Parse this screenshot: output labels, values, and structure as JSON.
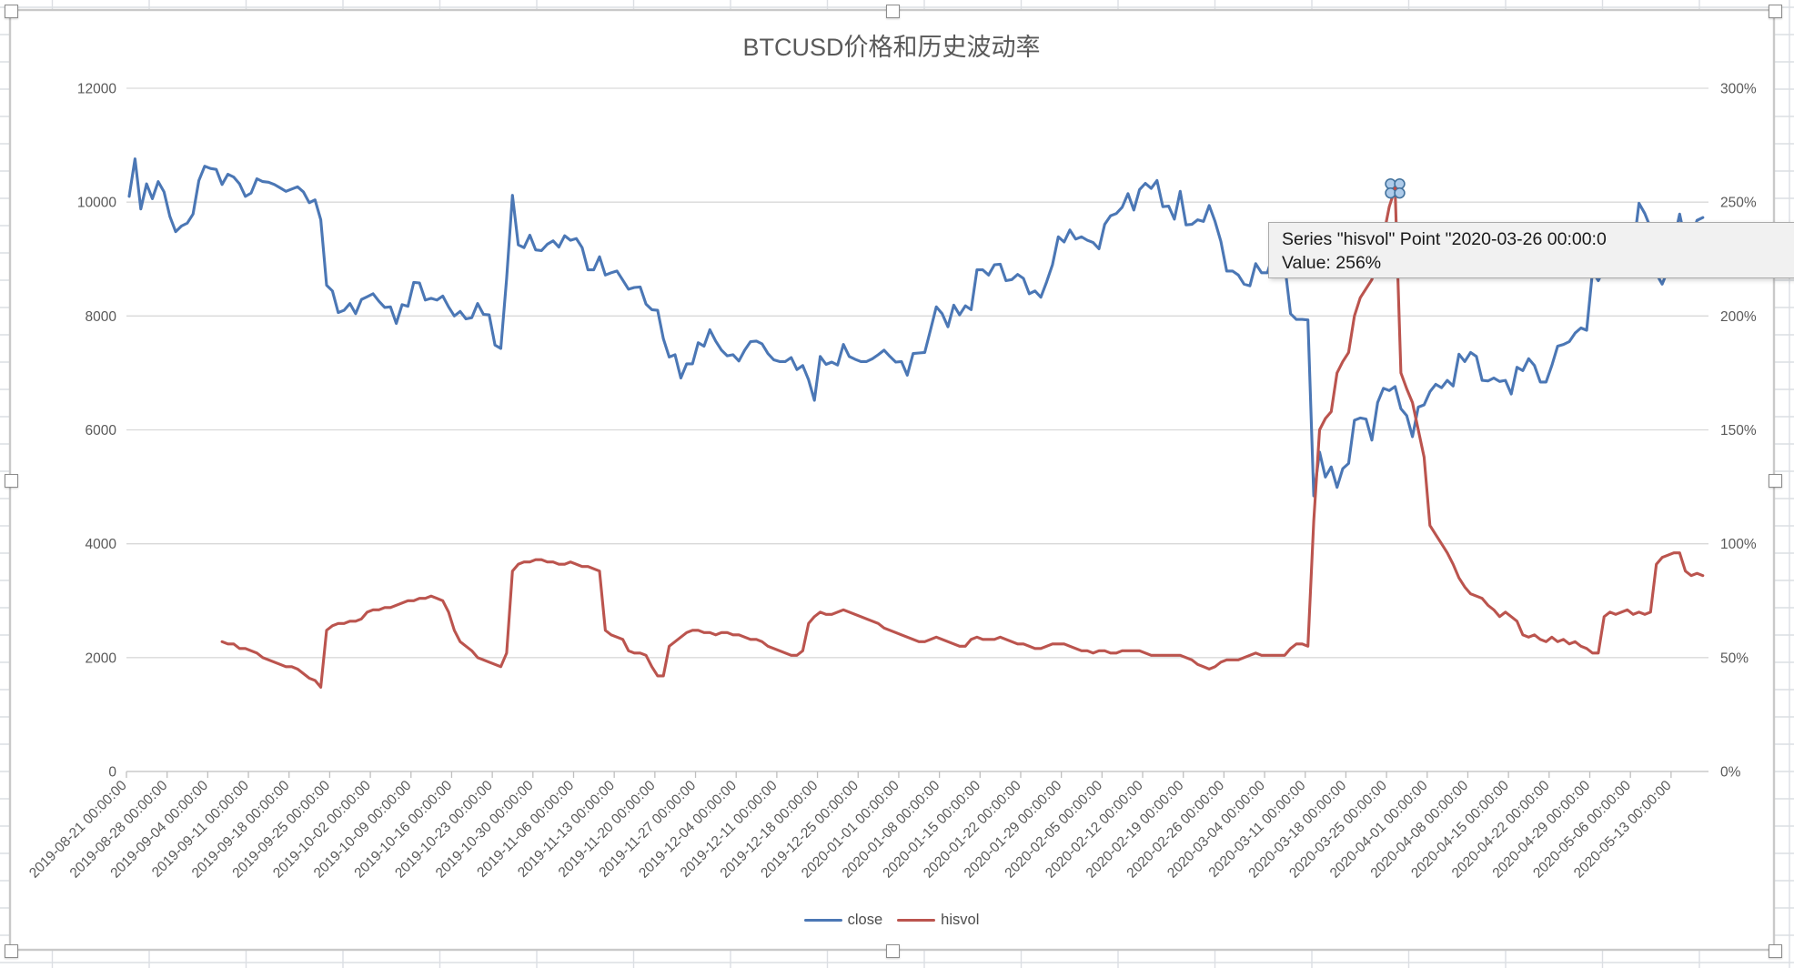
{
  "title": "BTCUSD价格和历史波动率",
  "legend": {
    "close_label": "close",
    "hisvol_label": "hisvol"
  },
  "tooltip": {
    "line1": "Series \"hisvol\" Point \"2020-03-26 00:00:0",
    "line2": "Value: 256%"
  },
  "colors": {
    "close": "#4b77b5",
    "hisvol": "#bb544e",
    "gridline": "#d9d9d9",
    "axis_line": "#bfbfbf",
    "axis_text": "#595959",
    "sheet_grid": "#dcdfe3",
    "chart_border": "#c9c9c9",
    "marker_fill": "#aecbea",
    "marker_stroke": "#41719c",
    "tooltip_bg": "#f1f1f1"
  },
  "chart_data": {
    "type": "line",
    "title": "BTCUSD价格和历史波动率",
    "grid": true,
    "legend_position": "bottom",
    "start_date": "2019-08-21",
    "x_tick_interval_days": 7,
    "x_tick_labels": [
      "2019-08-21 00:00:00",
      "2019-08-28 00:00:00",
      "2019-09-04 00:00:00",
      "2019-09-11 00:00:00",
      "2019-09-18 00:00:00",
      "2019-09-25 00:00:00",
      "2019-10-02 00:00:00",
      "2019-10-09 00:00:00",
      "2019-10-16 00:00:00",
      "2019-10-23 00:00:00",
      "2019-10-30 00:00:00",
      "2019-11-06 00:00:00",
      "2019-11-13 00:00:00",
      "2019-11-20 00:00:00",
      "2019-11-27 00:00:00",
      "2019-12-04 00:00:00",
      "2019-12-11 00:00:00",
      "2019-12-18 00:00:00",
      "2019-12-25 00:00:00",
      "2020-01-01 00:00:00",
      "2020-01-08 00:00:00",
      "2020-01-15 00:00:00",
      "2020-01-22 00:00:00",
      "2020-01-29 00:00:00",
      "2020-02-05 00:00:00",
      "2020-02-12 00:00:00",
      "2020-02-19 00:00:00",
      "2020-02-26 00:00:00",
      "2020-03-04 00:00:00",
      "2020-03-11 00:00:00",
      "2020-03-18 00:00:00",
      "2020-03-25 00:00:00",
      "2020-04-01 00:00:00",
      "2020-04-08 00:00:00",
      "2020-04-15 00:00:00",
      "2020-04-22 00:00:00",
      "2020-04-29 00:00:00",
      "2020-05-06 00:00:00",
      "2020-05-13 00:00:00"
    ],
    "y_left": {
      "min": 0,
      "max": 12000,
      "ticks": [
        "0",
        "2000",
        "4000",
        "6000",
        "8000",
        "10000",
        "12000"
      ]
    },
    "y_right": {
      "min_percent": 0,
      "max_percent": 300,
      "ticks": [
        "0%",
        "50%",
        "100%",
        "150%",
        "200%",
        "250%",
        "300%"
      ]
    },
    "selected_point": {
      "series": "hisvol",
      "date": "2020-03-26",
      "value_percent": 256,
      "day_index": 218
    },
    "series": [
      {
        "name": "close",
        "axis": "left",
        "color": "#4b77b5",
        "values": [
          10100,
          10760,
          9880,
          10320,
          10060,
          10360,
          10180,
          9750,
          9480,
          9580,
          9630,
          9790,
          10380,
          10630,
          10590,
          10575,
          10310,
          10490,
          10440,
          10320,
          10100,
          10160,
          10410,
          10360,
          10350,
          10310,
          10250,
          10190,
          10230,
          10270,
          10180,
          9990,
          10040,
          9690,
          8540,
          8440,
          8060,
          8100,
          8220,
          8040,
          8290,
          8340,
          8390,
          8260,
          8150,
          8160,
          7870,
          8200,
          8170,
          8590,
          8580,
          8280,
          8310,
          8280,
          8350,
          8160,
          8000,
          8080,
          7950,
          7970,
          8220,
          8030,
          8020,
          7490,
          7430,
          8660,
          10120,
          9250,
          9200,
          9420,
          9160,
          9150,
          9260,
          9320,
          9210,
          9410,
          9330,
          9360,
          9200,
          8810,
          8810,
          9040,
          8720,
          8760,
          8790,
          8630,
          8470,
          8500,
          8510,
          8210,
          8110,
          8100,
          7600,
          7280,
          7320,
          6910,
          7160,
          7160,
          7530,
          7470,
          7760,
          7560,
          7400,
          7300,
          7320,
          7210,
          7400,
          7550,
          7560,
          7510,
          7340,
          7230,
          7200,
          7200,
          7270,
          7060,
          7130,
          6880,
          6520,
          7290,
          7150,
          7190,
          7140,
          7500,
          7290,
          7240,
          7200,
          7200,
          7250,
          7320,
          7400,
          7290,
          7190,
          7200,
          6960,
          7340,
          7350,
          7360,
          7760,
          8160,
          8040,
          7810,
          8190,
          8020,
          8180,
          8110,
          8810,
          8810,
          8720,
          8900,
          8910,
          8620,
          8640,
          8730,
          8660,
          8390,
          8440,
          8330,
          8600,
          8900,
          9390,
          9300,
          9510,
          9350,
          9390,
          9330,
          9290,
          9180,
          9610,
          9760,
          9800,
          9910,
          10150,
          9860,
          10220,
          10330,
          10240,
          10380,
          9920,
          9930,
          9700,
          10190,
          9600,
          9610,
          9690,
          9660,
          9940,
          9660,
          9310,
          8790,
          8790,
          8720,
          8560,
          8530,
          8920,
          8760,
          8760,
          9080,
          9130,
          8900,
          8040,
          7940,
          7940,
          7930,
          4840,
          5610,
          5170,
          5350,
          4990,
          5320,
          5410,
          6170,
          6210,
          6190,
          5820,
          6480,
          6730,
          6690,
          6760,
          6370,
          6250,
          5880,
          6400,
          6440,
          6670,
          6800,
          6740,
          6870,
          6770,
          7330,
          7200,
          7360,
          7290,
          6870,
          6860,
          6910,
          6850,
          6870,
          6630,
          7100,
          7040,
          7250,
          7130,
          6840,
          6840,
          7130,
          7470,
          7500,
          7550,
          7700,
          7790,
          7750,
          8780,
          8620,
          8830,
          8970,
          8900,
          8870,
          9000,
          9150,
          9980,
          9800,
          9550,
          8740,
          8560,
          8810,
          9310,
          9790,
          9310,
          9380,
          9680,
          9730
        ]
      },
      {
        "name": "hisvol",
        "axis": "right",
        "color": "#bb544e",
        "values_percent": [
          null,
          null,
          null,
          null,
          null,
          null,
          null,
          null,
          null,
          null,
          null,
          null,
          null,
          null,
          null,
          null,
          57,
          56,
          56,
          54,
          54,
          53,
          52,
          50,
          49,
          48,
          47,
          46,
          46,
          45,
          43,
          41,
          40,
          37,
          62,
          64,
          65,
          65,
          66,
          66,
          67,
          70,
          71,
          71,
          72,
          72,
          73,
          74,
          75,
          75,
          76,
          76,
          77,
          76,
          75,
          70,
          62,
          57,
          55,
          53,
          50,
          49,
          48,
          47,
          46,
          52,
          88,
          91,
          92,
          92,
          93,
          93,
          92,
          92,
          91,
          91,
          92,
          91,
          90,
          90,
          89,
          88,
          62,
          60,
          59,
          58,
          53,
          52,
          52,
          51,
          46,
          42,
          42,
          55,
          57,
          59,
          61,
          62,
          62,
          61,
          61,
          60,
          61,
          61,
          60,
          60,
          59,
          58,
          58,
          57,
          55,
          54,
          53,
          52,
          51,
          51,
          53,
          65,
          68,
          70,
          69,
          69,
          70,
          71,
          70,
          69,
          68,
          67,
          66,
          65,
          63,
          62,
          61,
          60,
          59,
          58,
          57,
          57,
          58,
          59,
          58,
          57,
          56,
          55,
          55,
          58,
          59,
          58,
          58,
          58,
          59,
          58,
          57,
          56,
          56,
          55,
          54,
          54,
          55,
          56,
          56,
          56,
          55,
          54,
          53,
          53,
          52,
          53,
          53,
          52,
          52,
          53,
          53,
          53,
          53,
          52,
          51,
          51,
          51,
          51,
          51,
          51,
          50,
          49,
          47,
          46,
          45,
          46,
          48,
          49,
          49,
          49,
          50,
          51,
          52,
          51,
          51,
          51,
          51,
          51,
          54,
          56,
          56,
          55,
          110,
          150,
          155,
          158,
          175,
          180,
          184,
          200,
          208,
          212,
          216,
          225,
          235,
          248,
          256,
          175,
          168,
          162,
          150,
          138,
          108,
          104,
          100,
          96,
          91,
          85,
          81,
          78,
          77,
          76,
          73,
          71,
          68,
          70,
          68,
          66,
          60,
          59,
          60,
          58,
          57,
          59,
          57,
          58,
          56,
          57,
          55,
          54,
          52,
          52,
          68,
          70,
          69,
          70,
          71,
          69,
          70,
          69,
          70,
          91,
          94,
          95,
          96,
          96,
          88,
          86,
          87,
          86
        ]
      }
    ]
  }
}
